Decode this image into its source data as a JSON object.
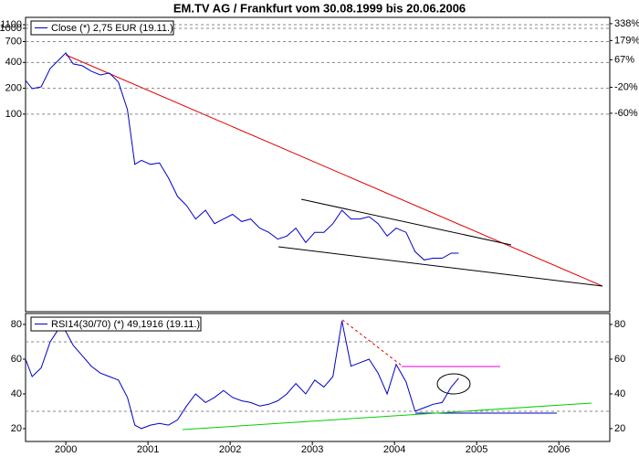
{
  "chart_data": [
    {
      "type": "line",
      "title": "EM.TV AG / Frankfurt vom 30.08.1999 bis 20.06.2006",
      "x": [
        1999.51,
        1999.59,
        1999.7,
        1999.81,
        1999.92,
        2000.0,
        2000.09,
        2000.2,
        2000.31,
        2000.42,
        2000.53,
        2000.64,
        2000.75,
        2000.84,
        2000.92,
        2001.03,
        2001.14,
        2001.25,
        2001.36,
        2001.47,
        2001.58,
        2001.7,
        2001.81,
        2001.92,
        2002.03,
        2002.14,
        2002.25,
        2002.36,
        2002.47,
        2002.58,
        2002.69,
        2002.8,
        2002.92,
        2003.03,
        2003.14,
        2003.25,
        2003.36,
        2003.47,
        2003.58,
        2003.69,
        2003.8,
        2003.91,
        2004.02,
        2004.14,
        2004.25,
        2004.36,
        2004.47,
        2004.58,
        2004.69,
        2004.78
      ],
      "series": [
        {
          "name": "Close (*) 2,75 EUR (19.11.)",
          "color": "#0000c8",
          "values": [
            247,
            198,
            208,
            340,
            433,
            517,
            385,
            366,
            316,
            286,
            301,
            236,
            113,
            26,
            29,
            26,
            27,
            18,
            11,
            8.6,
            6.0,
            7.6,
            5.3,
            6.0,
            6.8,
            5.6,
            6.0,
            4.7,
            4.2,
            3.5,
            3.8,
            4.7,
            3.2,
            4.2,
            4.2,
            5.3,
            7.6,
            6.0,
            6.0,
            6.4,
            5.3,
            3.8,
            4.7,
            4.2,
            2.5,
            2.0,
            2.1,
            2.1,
            2.4,
            2.4
          ]
        }
      ],
      "xlim": [
        1999.51,
        2006.62
      ],
      "ylim": [
        0.5,
        1340
      ],
      "log_scale": true,
      "yticks": [
        100,
        200,
        400,
        700,
        1000,
        1100
      ],
      "y2lim": [
        -99.8,
        418
      ],
      "y2ticks": [
        {
          "value": -60,
          "label": "-60%"
        },
        {
          "value": -20,
          "label": "-20%"
        },
        {
          "value": 67,
          "label": "67%"
        },
        {
          "value": 179,
          "label": "179%"
        },
        {
          "value": 338,
          "label": "338%"
        }
      ],
      "grid": true
    },
    {
      "type": "line",
      "x": [
        1999.51,
        1999.59,
        1999.7,
        1999.81,
        1999.92,
        2000.0,
        2000.09,
        2000.2,
        2000.31,
        2000.42,
        2000.53,
        2000.64,
        2000.75,
        2000.84,
        2000.92,
        2001.03,
        2001.14,
        2001.25,
        2001.36,
        2001.47,
        2001.58,
        2001.7,
        2001.81,
        2001.92,
        2002.03,
        2002.14,
        2002.25,
        2002.36,
        2002.47,
        2002.58,
        2002.69,
        2002.8,
        2002.92,
        2003.03,
        2003.14,
        2003.25,
        2003.36,
        2003.47,
        2003.58,
        2003.69,
        2003.8,
        2003.91,
        2004.02,
        2004.14,
        2004.25,
        2004.36,
        2004.47,
        2004.58,
        2004.69,
        2004.78
      ],
      "series": [
        {
          "name": "RSI14(30/70) (*) 49,1916 (19.11.)",
          "color": "#0000c8",
          "values": [
            60,
            50,
            55,
            70,
            78,
            76,
            68,
            62,
            56,
            52,
            50,
            48,
            38,
            22,
            20,
            22,
            23,
            22,
            25,
            33,
            40,
            35,
            38,
            42,
            38,
            36,
            35,
            33,
            34,
            36,
            40,
            46,
            40,
            48,
            44,
            50,
            82,
            56,
            58,
            60,
            52,
            40,
            57,
            47,
            30,
            32,
            34,
            35,
            44,
            49
          ]
        }
      ],
      "xlim": [
        1999.51,
        2006.62
      ],
      "xticks": [
        2000,
        2001,
        2002,
        2003,
        2004,
        2005,
        2006
      ],
      "ylim": [
        12.6,
        86.3
      ],
      "yticks": [
        20,
        40,
        60,
        80
      ],
      "reference_lines": [
        30,
        70
      ],
      "right_axis": true
    }
  ]
}
